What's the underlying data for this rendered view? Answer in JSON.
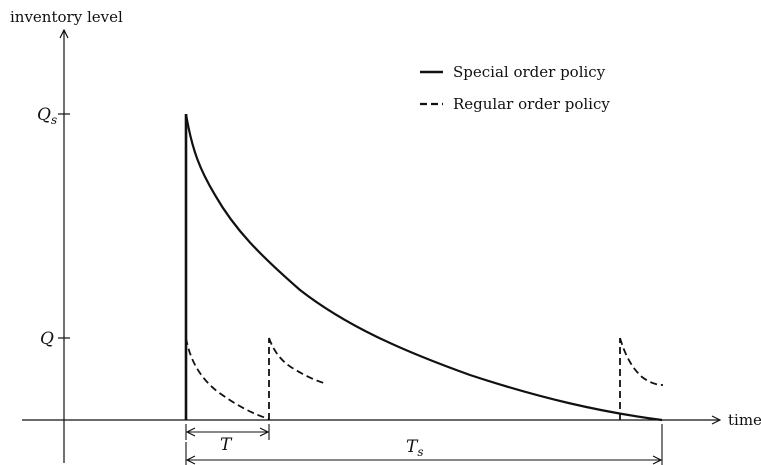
{
  "axes": {
    "y_label": "inventory level",
    "x_label": "time",
    "y_tick_high": "Q",
    "y_tick_high_sub": "s",
    "y_tick_low": "Q"
  },
  "legend": {
    "items": [
      {
        "label": "Special order policy",
        "style": "solid"
      },
      {
        "label": "Regular order policy",
        "style": "dashed"
      }
    ]
  },
  "intervals": {
    "short": "T",
    "long": "T",
    "long_sub": "s"
  },
  "colors": {
    "ink": "#111111"
  }
}
